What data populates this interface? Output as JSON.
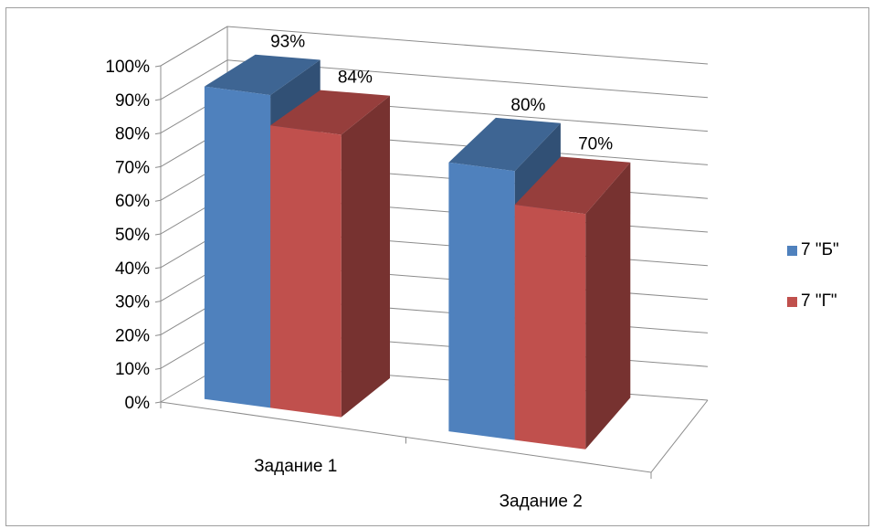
{
  "chart_data": {
    "type": "bar",
    "title": "",
    "xlabel": "",
    "ylabel": "",
    "categories": [
      "Задание 1",
      "Задание 2"
    ],
    "series": [
      {
        "name": "7 \"Б\"",
        "values": [
          93,
          80
        ],
        "labels": [
          "93%",
          "80%"
        ],
        "color": "#4f81bd"
      },
      {
        "name": "7 \"Г\"",
        "values": [
          84,
          70
        ],
        "labels": [
          "84%",
          "70%"
        ],
        "color": "#c0504d"
      }
    ],
    "ylim": [
      0,
      100
    ],
    "yticks": [
      "0%",
      "10%",
      "20%",
      "30%",
      "40%",
      "50%",
      "60%",
      "70%",
      "80%",
      "90%",
      "100%"
    ],
    "grid": true,
    "three_d": true,
    "legend_position": "right"
  }
}
